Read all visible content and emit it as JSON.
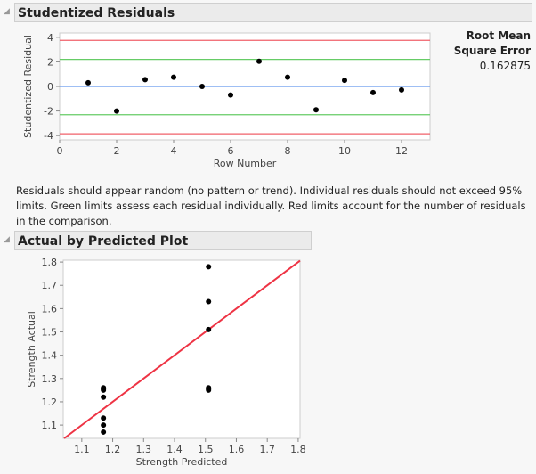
{
  "sections": {
    "residuals_title": "Studentized Residuals",
    "actual_predicted_title": "Actual by Predicted Plot"
  },
  "rmse": {
    "label_line1": "Root Mean",
    "label_line2": "Square Error",
    "value": "0.162875"
  },
  "note": "Residuals should appear random (no pattern or trend). Individual residuals should not exceed 95% limits. Green limits assess each residual individually. Red limits account for the number of residuals in the comparison.",
  "colors": {
    "red_limit": "#f0606a",
    "green_limit": "#66cc66",
    "zero_line": "#6699ee",
    "fit_line": "#ee3344",
    "points": "#000000"
  },
  "chart_data": [
    {
      "type": "scatter",
      "xlabel": "Row Number",
      "ylabel": "Studentized Residual",
      "xlim": [
        0,
        13
      ],
      "ylim": [
        -4.35,
        4.35
      ],
      "xticks": [
        0,
        2,
        4,
        6,
        8,
        10,
        12
      ],
      "yticks": [
        -4,
        -2,
        0,
        2,
        4
      ],
      "grid": false,
      "reference_lines": {
        "red": [
          3.75,
          -3.85
        ],
        "green": [
          2.2,
          -2.3
        ],
        "zero": [
          0
        ]
      },
      "x": [
        1,
        2,
        3,
        4,
        5,
        6,
        7,
        8,
        9,
        10,
        11,
        12
      ],
      "y": [
        0.3,
        -2.0,
        0.55,
        0.75,
        0.0,
        -0.7,
        2.05,
        0.75,
        -1.9,
        0.5,
        -0.5,
        -0.28
      ]
    },
    {
      "type": "scatter",
      "xlabel": "Strength Predicted",
      "ylabel": "Strength Actual",
      "xlim": [
        1.04,
        1.806
      ],
      "ylim": [
        1.043,
        1.808
      ],
      "xticks": [
        "1.1",
        "1.2",
        "1.3",
        "1.4",
        "1.5",
        "1.6",
        "1.7",
        "1.8"
      ],
      "yticks": [
        "1.1",
        "1.2",
        "1.3",
        "1.4",
        "1.5",
        "1.6",
        "1.7",
        "1.8"
      ],
      "grid": false,
      "fit_line": "y = x",
      "x": [
        1.17,
        1.17,
        1.17,
        1.17,
        1.17,
        1.17,
        1.17,
        1.51,
        1.51,
        1.51,
        1.51,
        1.51,
        1.51
      ],
      "y": [
        1.26,
        1.255,
        1.25,
        1.22,
        1.13,
        1.1,
        1.07,
        1.78,
        1.63,
        1.51,
        1.26,
        1.255,
        1.25
      ]
    }
  ]
}
